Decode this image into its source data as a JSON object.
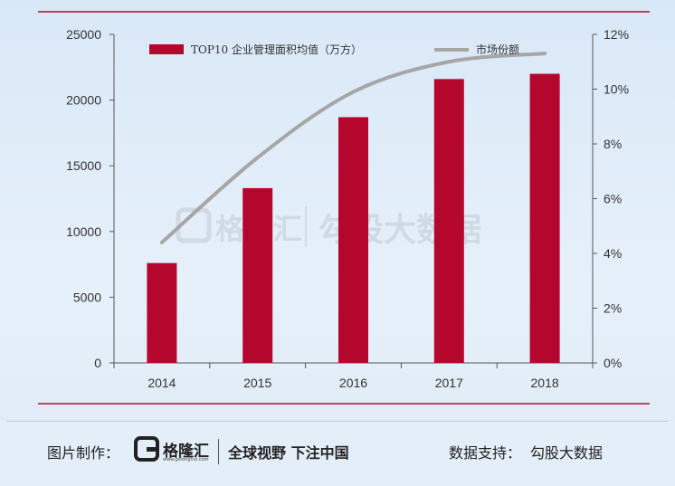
{
  "chart_data": {
    "type": "bar",
    "categories": [
      "2014",
      "2015",
      "2016",
      "2017",
      "2018"
    ],
    "series": [
      {
        "name": "TOP10 企业管理面积均值（万方）",
        "type": "bar",
        "axis": "left",
        "color": "#b5062e",
        "values": [
          7600,
          13300,
          18700,
          21600,
          22000
        ]
      },
      {
        "name": "市场份额",
        "type": "line",
        "axis": "right",
        "color": "#a6a6a6",
        "values": [
          4.4,
          7.5,
          9.9,
          11.0,
          11.3
        ]
      }
    ],
    "y_left": {
      "min": 0,
      "max": 25000,
      "ticks": [
        "0",
        "5000",
        "10000",
        "15000",
        "20000",
        "25000"
      ]
    },
    "y_right": {
      "min": 0,
      "max": 12,
      "ticks": [
        "0%",
        "2%",
        "4%",
        "6%",
        "8%",
        "10%",
        "12%"
      ]
    },
    "legend_position": "top",
    "grid": false
  },
  "watermark": {
    "brand": "格隆汇",
    "text": "勾股大数据"
  },
  "footer": {
    "made_by_label": "图片制作：",
    "logo_name": "格隆汇",
    "logo_url": "www.gelonghui.com",
    "slogan": "全球视野 下注中国",
    "source_label": "数据支持：",
    "source_name": "勾股大数据"
  },
  "colors": {
    "accent": "#b5062e",
    "line": "#a6a6a6",
    "rule": "#a4132a"
  }
}
